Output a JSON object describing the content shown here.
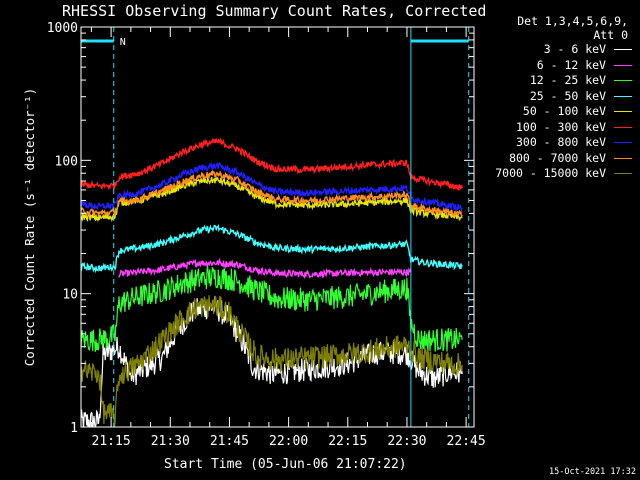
{
  "chart_data": {
    "type": "line",
    "title": "RHESSI Observing Summary Count Rates, Corrected",
    "legend_header": [
      "Det 1,3,4,5,6,9,",
      "Att 0"
    ],
    "xlabel": "Start Time (05-Jun-06 21:07:22)",
    "ylabel": "Corrected Count Rate (s⁻¹ detector⁻¹)",
    "y_scale": "log",
    "ylim": [
      1,
      1000
    ],
    "y_ticks": [
      {
        "value": 1,
        "label": "1"
      },
      {
        "value": 10,
        "label": "10"
      },
      {
        "value": 100,
        "label": "100"
      },
      {
        "value": 1000,
        "label": "1000"
      }
    ],
    "xlim": [
      "21:07:22",
      "22:47:00"
    ],
    "x_ticks": [
      "21:15",
      "21:30",
      "21:45",
      "22:00",
      "22:15",
      "22:30",
      "22:45"
    ],
    "legend_placement": "right, outside plot",
    "grid": false,
    "series": [
      {
        "name": "3 - 6 keV",
        "color": "#ffffff",
        "points": [
          [
            "21:07",
            1.1
          ],
          [
            "21:12",
            1.1
          ],
          [
            "21:13",
            3.5
          ],
          [
            "21:17",
            4.0
          ],
          [
            "21:20",
            2.4
          ],
          [
            "21:24",
            2.8
          ],
          [
            "21:28",
            3.3
          ],
          [
            "21:32",
            5.5
          ],
          [
            "21:36",
            7.5
          ],
          [
            "21:41",
            8.0
          ],
          [
            "21:45",
            6.5
          ],
          [
            "21:48",
            4.5
          ],
          [
            "21:51",
            2.8
          ],
          [
            "21:56",
            2.5
          ],
          [
            "22:05",
            2.7
          ],
          [
            "22:15",
            3.0
          ],
          [
            "22:22",
            3.6
          ],
          [
            "22:30",
            3.6
          ],
          [
            "22:33",
            2.6
          ],
          [
            "22:37",
            2.3
          ],
          [
            "22:41",
            2.6
          ],
          [
            "22:44",
            2.5
          ]
        ]
      },
      {
        "name": "6 - 12 keV",
        "color": "#ff40ff",
        "points": [
          [
            "21:17",
            14
          ],
          [
            "21:22",
            14.5
          ],
          [
            "21:27",
            15
          ],
          [
            "21:32",
            16
          ],
          [
            "21:37",
            17
          ],
          [
            "21:42",
            17
          ],
          [
            "21:47",
            16.5
          ],
          [
            "21:52",
            15
          ],
          [
            "21:57",
            14.2
          ],
          [
            "22:05",
            14
          ],
          [
            "22:15",
            14.3
          ],
          [
            "22:25",
            14.5
          ],
          [
            "22:30",
            14.5
          ],
          [
            "22:31",
            14.5
          ]
        ]
      },
      {
        "name": "12 - 25 keV",
        "color": "#30ff30",
        "points": [
          [
            "21:07",
            4.5
          ],
          [
            "21:12",
            4.5
          ],
          [
            "21:13",
            4.6
          ],
          [
            "21:16",
            4.8
          ],
          [
            "21:17",
            8.5
          ],
          [
            "21:22",
            9.5
          ],
          [
            "21:28",
            10.5
          ],
          [
            "21:33",
            12
          ],
          [
            "21:38",
            13
          ],
          [
            "21:42",
            13.5
          ],
          [
            "21:47",
            12.5
          ],
          [
            "21:52",
            10.5
          ],
          [
            "21:57",
            9.2
          ],
          [
            "22:05",
            9
          ],
          [
            "22:15",
            9.5
          ],
          [
            "22:25",
            10.5
          ],
          [
            "22:30",
            11
          ],
          [
            "22:31",
            6
          ],
          [
            "22:33",
            4.5
          ],
          [
            "22:38",
            4.5
          ],
          [
            "22:44",
            4.5
          ]
        ]
      },
      {
        "name": "25 - 50 keV",
        "color": "#40ffff",
        "points": [
          [
            "21:07",
            16
          ],
          [
            "21:12",
            15.5
          ],
          [
            "21:16",
            16
          ],
          [
            "21:17",
            21
          ],
          [
            "21:22",
            22
          ],
          [
            "21:28",
            24
          ],
          [
            "21:33",
            27
          ],
          [
            "21:38",
            30
          ],
          [
            "21:42",
            31
          ],
          [
            "21:47",
            28
          ],
          [
            "21:52",
            24
          ],
          [
            "21:57",
            22
          ],
          [
            "22:05",
            21.5
          ],
          [
            "22:15",
            22
          ],
          [
            "22:25",
            23
          ],
          [
            "22:30",
            23.5
          ],
          [
            "22:31",
            18
          ],
          [
            "22:35",
            17
          ],
          [
            "22:40",
            16.5
          ],
          [
            "22:44",
            16
          ]
        ]
      },
      {
        "name": "50 - 100 keV",
        "color": "#e6e600",
        "points": [
          [
            "21:07",
            38
          ],
          [
            "21:12",
            37
          ],
          [
            "21:16",
            38
          ],
          [
            "21:17",
            48
          ],
          [
            "21:22",
            50
          ],
          [
            "21:28",
            56
          ],
          [
            "21:33",
            64
          ],
          [
            "21:38",
            70
          ],
          [
            "21:42",
            71
          ],
          [
            "21:47",
            64
          ],
          [
            "21:52",
            53
          ],
          [
            "21:57",
            47
          ],
          [
            "22:05",
            46
          ],
          [
            "22:15",
            47
          ],
          [
            "22:25",
            49
          ],
          [
            "22:30",
            50
          ],
          [
            "22:31",
            42
          ],
          [
            "22:35",
            40
          ],
          [
            "22:40",
            38.5
          ],
          [
            "22:44",
            37
          ]
        ]
      },
      {
        "name": "100 - 300 keV",
        "color": "#ff2020",
        "points": [
          [
            "21:07",
            66
          ],
          [
            "21:12",
            64
          ],
          [
            "21:16",
            65
          ],
          [
            "21:17",
            75
          ],
          [
            "21:22",
            80
          ],
          [
            "21:28",
            95
          ],
          [
            "21:33",
            115
          ],
          [
            "21:38",
            132
          ],
          [
            "21:42",
            138
          ],
          [
            "21:47",
            122
          ],
          [
            "21:52",
            98
          ],
          [
            "21:57",
            86
          ],
          [
            "22:05",
            85
          ],
          [
            "22:15",
            90
          ],
          [
            "22:25",
            94
          ],
          [
            "22:30",
            96
          ],
          [
            "22:31",
            75
          ],
          [
            "22:35",
            70
          ],
          [
            "22:40",
            66
          ],
          [
            "22:44",
            62
          ]
        ]
      },
      {
        "name": "300 - 800 keV",
        "color": "#2020ff",
        "points": [
          [
            "21:07",
            47
          ],
          [
            "21:12",
            45
          ],
          [
            "21:16",
            46
          ],
          [
            "21:17",
            54
          ],
          [
            "21:22",
            57
          ],
          [
            "21:28",
            66
          ],
          [
            "21:33",
            78
          ],
          [
            "21:38",
            88
          ],
          [
            "21:42",
            91
          ],
          [
            "21:47",
            81
          ],
          [
            "21:52",
            66
          ],
          [
            "21:57",
            58
          ],
          [
            "22:05",
            57
          ],
          [
            "22:15",
            59
          ],
          [
            "22:25",
            61
          ],
          [
            "22:30",
            62
          ],
          [
            "22:31",
            52
          ],
          [
            "22:35",
            49
          ],
          [
            "22:40",
            46
          ],
          [
            "22:44",
            44
          ]
        ]
      },
      {
        "name": "800 - 7000 keV",
        "color": "#ff9020",
        "points": [
          [
            "21:07",
            42
          ],
          [
            "21:12",
            40
          ],
          [
            "21:16",
            41
          ],
          [
            "21:17",
            49
          ],
          [
            "21:22",
            51
          ],
          [
            "21:28",
            59
          ],
          [
            "21:33",
            69
          ],
          [
            "21:38",
            77
          ],
          [
            "21:42",
            79
          ],
          [
            "21:47",
            71
          ],
          [
            "21:52",
            58
          ],
          [
            "21:57",
            51
          ],
          [
            "22:05",
            50
          ],
          [
            "22:15",
            52
          ],
          [
            "22:25",
            54
          ],
          [
            "22:30",
            55
          ],
          [
            "22:31",
            46
          ],
          [
            "22:35",
            43
          ],
          [
            "22:40",
            41
          ],
          [
            "22:44",
            39
          ]
        ]
      },
      {
        "name": "7000 - 15000 keV",
        "color": "#808000",
        "points": [
          [
            "21:07",
            2.7
          ],
          [
            "21:12",
            2.5
          ],
          [
            "21:13",
            1.3
          ],
          [
            "21:16",
            1.2
          ],
          [
            "21:17",
            2.4
          ],
          [
            "21:22",
            3.0
          ],
          [
            "21:28",
            4.5
          ],
          [
            "21:33",
            6.5
          ],
          [
            "21:37",
            8.0
          ],
          [
            "21:41",
            8.2
          ],
          [
            "21:45",
            7.2
          ],
          [
            "21:48",
            5.0
          ],
          [
            "21:52",
            3.4
          ],
          [
            "21:57",
            3.2
          ],
          [
            "22:05",
            3.3
          ],
          [
            "22:15",
            3.5
          ],
          [
            "22:22",
            3.8
          ],
          [
            "22:30",
            4.1
          ],
          [
            "22:33",
            3.3
          ],
          [
            "22:38",
            3.1
          ],
          [
            "22:44",
            2.9
          ]
        ]
      }
    ],
    "annotations": {
      "night_intervals": [
        [
          "21:07:22",
          "21:15:40"
        ],
        [
          "22:31:00",
          "22:45:40"
        ]
      ],
      "saa_marker": "N",
      "night_color": "#20e0ff"
    }
  },
  "timestamp": "15-Oct-2021 17:32"
}
